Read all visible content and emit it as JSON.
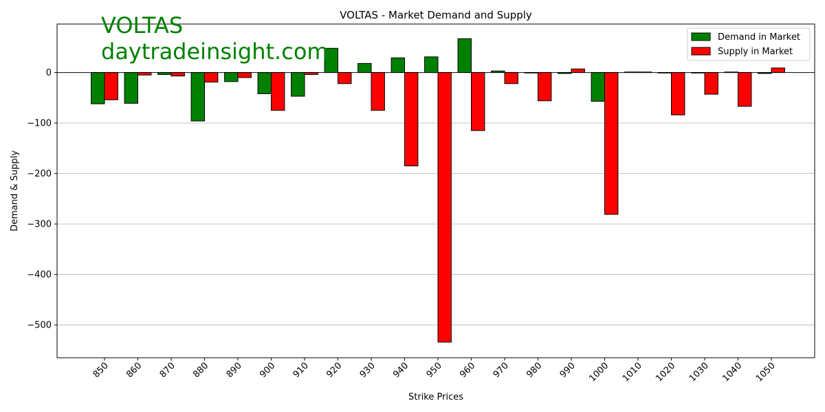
{
  "watermark": {
    "line1": "VOLTAS",
    "line2": "daytradeinsight.com",
    "color": "#008000"
  },
  "chart_data": {
    "type": "bar",
    "title": "VOLTAS - Market Demand and Supply",
    "xlabel": "Strike Prices",
    "ylabel": "Demand & Supply",
    "categories": [
      "850",
      "860",
      "870",
      "880",
      "890",
      "900",
      "910",
      "920",
      "930",
      "940",
      "950",
      "960",
      "970",
      "980",
      "990",
      "1000",
      "1010",
      "1020",
      "1030",
      "1040",
      "1050"
    ],
    "series": [
      {
        "name": "Demand in Market",
        "color": "#008000",
        "values": [
          -62,
          -61,
          -4,
          -96,
          -18,
          -42,
          -47,
          48,
          18,
          29,
          31,
          67,
          3,
          -1,
          -2,
          -57,
          1,
          -1,
          -1,
          1,
          -2
        ]
      },
      {
        "name": "Supply in Market",
        "color": "#ff0000",
        "values": [
          -54,
          -5,
          -7,
          -19,
          -10,
          -75,
          -4,
          -22,
          -75,
          -185,
          -534,
          -115,
          -22,
          -56,
          7,
          -281,
          1,
          -84,
          -43,
          -67,
          9
        ]
      }
    ],
    "ylim": [
      -565,
      96
    ],
    "yticks": [
      0,
      -100,
      -200,
      -300,
      -400,
      -500
    ],
    "ytick_labels": [
      "0",
      "−100",
      "−200",
      "−300",
      "−400",
      "−500"
    ],
    "grid": "y",
    "legend_position": "top-right"
  }
}
